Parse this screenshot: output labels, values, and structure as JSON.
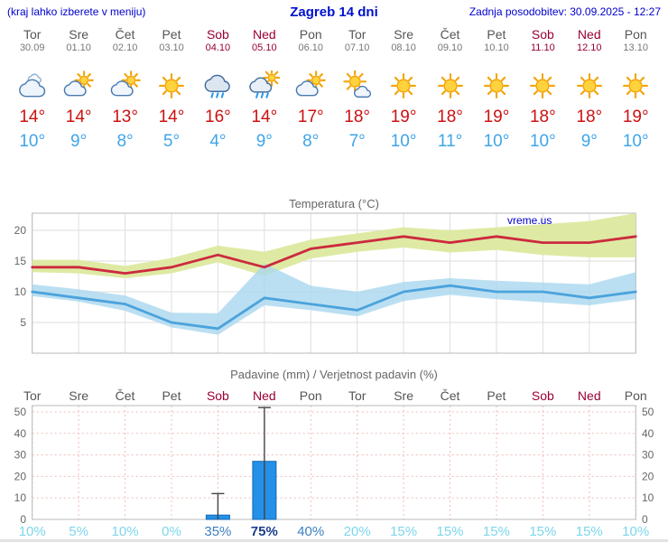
{
  "header": {
    "note": "(kraj lahko izberete v meniju)",
    "title": "Zagreb 14 dni",
    "updated": "Zadnja posodobitev: 30.09.2025 - 12:27"
  },
  "forecast": {
    "days": [
      {
        "day": "Tor",
        "date": "30.09",
        "weekend": false,
        "icon": "cloudy",
        "tmax": "14°",
        "tmin": "10°"
      },
      {
        "day": "Sre",
        "date": "01.10",
        "weekend": false,
        "icon": "partly-cloudy",
        "tmax": "14°",
        "tmin": "9°"
      },
      {
        "day": "Čet",
        "date": "02.10",
        "weekend": false,
        "icon": "partly-cloudy",
        "tmax": "13°",
        "tmin": "8°"
      },
      {
        "day": "Pet",
        "date": "03.10",
        "weekend": false,
        "icon": "sunny",
        "tmax": "14°",
        "tmin": "5°"
      },
      {
        "day": "Sob",
        "date": "04.10",
        "weekend": true,
        "icon": "rain",
        "tmax": "16°",
        "tmin": "4°"
      },
      {
        "day": "Ned",
        "date": "05.10",
        "weekend": true,
        "icon": "rain-sun",
        "tmax": "14°",
        "tmin": "9°"
      },
      {
        "day": "Pon",
        "date": "06.10",
        "weekend": false,
        "icon": "partly-cloudy",
        "tmax": "17°",
        "tmin": "8°"
      },
      {
        "day": "Tor",
        "date": "07.10",
        "weekend": false,
        "icon": "mostly-sunny",
        "tmax": "18°",
        "tmin": "7°"
      },
      {
        "day": "Sre",
        "date": "08.10",
        "weekend": false,
        "icon": "sunny",
        "tmax": "19°",
        "tmin": "10°"
      },
      {
        "day": "Čet",
        "date": "09.10",
        "weekend": false,
        "icon": "sunny",
        "tmax": "18°",
        "tmin": "11°"
      },
      {
        "day": "Pet",
        "date": "10.10",
        "weekend": false,
        "icon": "sunny",
        "tmax": "19°",
        "tmin": "10°"
      },
      {
        "day": "Sob",
        "date": "11.10",
        "weekend": true,
        "icon": "sunny",
        "tmax": "18°",
        "tmin": "10°"
      },
      {
        "day": "Ned",
        "date": "12.10",
        "weekend": true,
        "icon": "sunny",
        "tmax": "18°",
        "tmin": "9°"
      },
      {
        "day": "Pon",
        "date": "13.10",
        "weekend": false,
        "icon": "sunny",
        "tmax": "19°",
        "tmin": "10°"
      }
    ]
  },
  "temp_chart": {
    "title": "Temperatura (°C)",
    "watermark": "vreme.us"
  },
  "precip_chart": {
    "title": "Padavine (mm) / Verjetnost padavin (%)"
  },
  "chart_data": [
    {
      "type": "line",
      "title": "Temperatura (°C)",
      "x": [
        "Tor 30.09",
        "Sre 01.10",
        "Čet 02.10",
        "Pet 03.10",
        "Sob 04.10",
        "Ned 05.10",
        "Pon 06.10",
        "Tor 07.10",
        "Sre 08.10",
        "Čet 09.10",
        "Pet 10.10",
        "Sob 11.10",
        "Ned 12.10",
        "Pon 13.10"
      ],
      "ylim": [
        0,
        23
      ],
      "yticks": [
        5,
        10,
        15,
        20
      ],
      "grid": true,
      "legend": "none",
      "series": [
        {
          "name": "tmax",
          "color": "#cc2a3e",
          "values": [
            14,
            14,
            13,
            14,
            16,
            14,
            17,
            18,
            19,
            18,
            19,
            18,
            18,
            19
          ]
        },
        {
          "name": "tmin",
          "color": "#4ba3dc",
          "values": [
            10,
            9,
            8,
            5,
            4,
            9,
            8,
            7,
            10,
            11,
            10,
            10,
            9,
            10
          ]
        },
        {
          "name": "tmax_band_upper",
          "color": "#dce99e",
          "values": [
            15.2,
            15.2,
            14.2,
            15.5,
            17.5,
            16.5,
            18.5,
            19.5,
            20.5,
            20,
            20.5,
            21,
            21.5,
            22.8
          ]
        },
        {
          "name": "tmax_band_lower",
          "color": "#dce99e",
          "values": [
            13.2,
            13,
            12.2,
            13,
            14.8,
            12.6,
            15.4,
            16.5,
            17.2,
            16.4,
            16.8,
            16,
            15.6,
            15.6
          ]
        },
        {
          "name": "tmin_band_upper",
          "color": "#a8d6ee",
          "values": [
            11.2,
            10.4,
            9.4,
            6.6,
            6.5,
            14.6,
            11,
            10,
            11.6,
            12.2,
            11.8,
            11.5,
            11.2,
            13.2
          ]
        },
        {
          "name": "tmin_band_lower",
          "color": "#a8d6ee",
          "values": [
            9.3,
            8.4,
            6.9,
            4.2,
            3,
            7.8,
            7,
            6,
            8.5,
            9.5,
            8.8,
            8.3,
            7.8,
            8.8
          ]
        }
      ]
    },
    {
      "type": "bar",
      "title": "Padavine (mm) / Verjetnost padavin (%)",
      "categories": [
        "Tor",
        "Sre",
        "Čet",
        "Pet",
        "Sob",
        "Ned",
        "Pon",
        "Tor",
        "Sre",
        "Čet",
        "Pet",
        "Sob",
        "Ned",
        "Pon"
      ],
      "values": [
        0,
        0,
        0,
        0,
        2,
        27,
        0,
        0,
        0,
        0,
        0,
        0,
        0,
        0
      ],
      "whisker_max": [
        0,
        0,
        0,
        0,
        12,
        52,
        0,
        0,
        0,
        0,
        0,
        0,
        0,
        0
      ],
      "probability_pct": [
        10,
        5,
        10,
        0,
        35,
        75,
        40,
        20,
        15,
        15,
        15,
        15,
        15,
        10
      ],
      "bar_color": "#2490e8",
      "ylim": [
        0,
        53
      ],
      "yticks": [
        0,
        10,
        20,
        30,
        40,
        50
      ],
      "grid": true
    }
  ]
}
